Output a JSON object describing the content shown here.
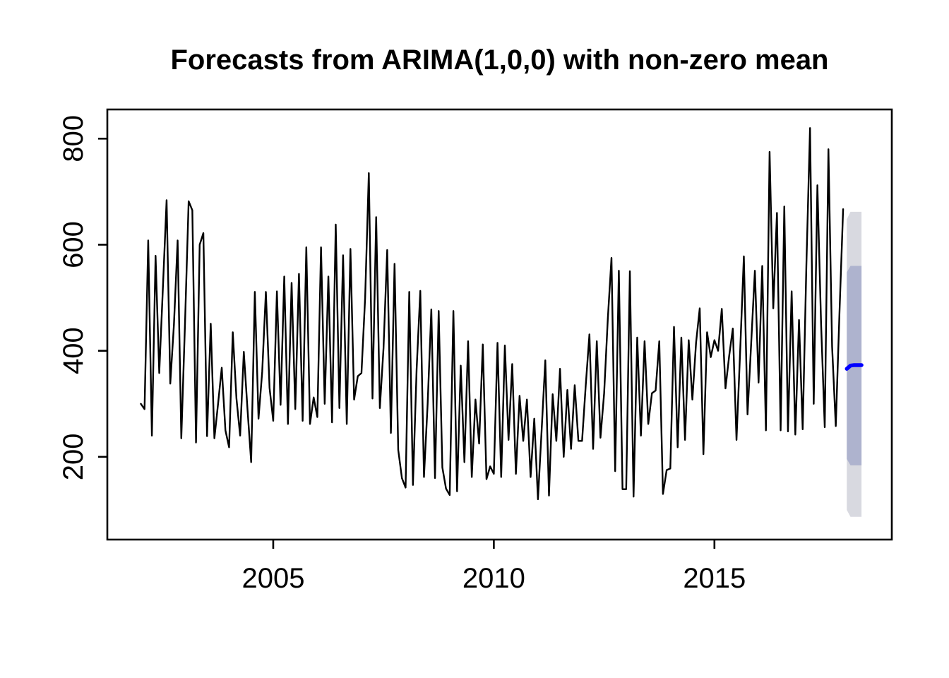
{
  "figure": {
    "background": "#ffffff"
  },
  "chart_data": {
    "type": "line",
    "title": "Forecasts from ARIMA(1,0,0) with non-zero mean",
    "xlabel": "",
    "ylabel": "",
    "grid": "off",
    "legend": "none",
    "xlim": [
      2001.24,
      2019.02
    ],
    "ylim": [
      44,
      855
    ],
    "x_axis": {
      "ticks": [
        {
          "value": 2005,
          "label": "2005"
        },
        {
          "value": 2010,
          "label": "2010"
        },
        {
          "value": 2015,
          "label": "2015"
        }
      ]
    },
    "y_axis": {
      "ticks": [
        {
          "value": 200,
          "label": "200"
        },
        {
          "value": 400,
          "label": "400"
        },
        {
          "value": 600,
          "label": "600"
        },
        {
          "value": 800,
          "label": "800"
        }
      ]
    },
    "observed": {
      "name": "observed-series",
      "color": "#000000",
      "frequency": 12,
      "start_year": 2002,
      "by_year": [
        {
          "year": 2002,
          "months": [
            300,
            290,
            608,
            240,
            579,
            358,
            520,
            684,
            338,
            450,
            608,
            235
          ]
        },
        {
          "year": 2003,
          "months": [
            450,
            682,
            665,
            227,
            600,
            622,
            239,
            451,
            235,
            300,
            368,
            250
          ]
        },
        {
          "year": 2004,
          "months": [
            218,
            435,
            310,
            240,
            398,
            290,
            190,
            511,
            272,
            360,
            511,
            330
          ]
        },
        {
          "year": 2005,
          "months": [
            268,
            512,
            298,
            540,
            262,
            528,
            290,
            545,
            268,
            595,
            262,
            312
          ]
        },
        {
          "year": 2006,
          "months": [
            275,
            595,
            300,
            540,
            265,
            638,
            292,
            580,
            262,
            592,
            308,
            352
          ]
        },
        {
          "year": 2007,
          "months": [
            358,
            500,
            735,
            310,
            652,
            292,
            405,
            590,
            245,
            564,
            213,
            160
          ]
        },
        {
          "year": 2008,
          "months": [
            142,
            511,
            147,
            365,
            513,
            162,
            300,
            478,
            160,
            475,
            180,
            140
          ]
        },
        {
          "year": 2009,
          "months": [
            128,
            475,
            135,
            372,
            190,
            418,
            162,
            308,
            225,
            412,
            158,
            182
          ]
        },
        {
          "year": 2010,
          "months": [
            168,
            415,
            162,
            410,
            232,
            375,
            168,
            315,
            230,
            308,
            162,
            272
          ]
        },
        {
          "year": 2011,
          "months": [
            120,
            250,
            382,
            127,
            318,
            230,
            366,
            200,
            326,
            215,
            335,
            230
          ]
        },
        {
          "year": 2012,
          "months": [
            230,
            335,
            431,
            215,
            418,
            236,
            320,
            460,
            575,
            173,
            551,
            139
          ]
        },
        {
          "year": 2013,
          "months": [
            139,
            550,
            125,
            425,
            240,
            418,
            262,
            320,
            325,
            418,
            130,
            175
          ]
        },
        {
          "year": 2014,
          "months": [
            178,
            445,
            218,
            425,
            232,
            420,
            308,
            415,
            480,
            205,
            435,
            388
          ]
        },
        {
          "year": 2015,
          "months": [
            420,
            400,
            479,
            329,
            390,
            442,
            232,
            400,
            578,
            280,
            415,
            551
          ]
        },
        {
          "year": 2016,
          "months": [
            340,
            560,
            250,
            775,
            480,
            660,
            250,
            672,
            248,
            512,
            242,
            458
          ]
        },
        {
          "year": 2017,
          "months": [
            252,
            560,
            820,
            300,
            712,
            452,
            256,
            780,
            408,
            258,
            470,
            667
          ]
        }
      ]
    },
    "forecast": {
      "name": "arima-forecast",
      "model": "ARIMA(1,0,0) with non-zero mean",
      "line_color": "#0000ff",
      "band80_color": "#aeb3ce",
      "band95_color": "#d8d9e0",
      "frequency": 12,
      "start_year": 2018.0,
      "mean": [
        366,
        372,
        373,
        373,
        373
      ],
      "hi80": [
        548,
        560,
        560,
        560,
        560
      ],
      "lo80": [
        196,
        184,
        184,
        184,
        184
      ],
      "hi95": [
        648,
        662,
        662,
        662,
        662
      ],
      "lo95": [
        100,
        87,
        87,
        87,
        87
      ]
    }
  }
}
